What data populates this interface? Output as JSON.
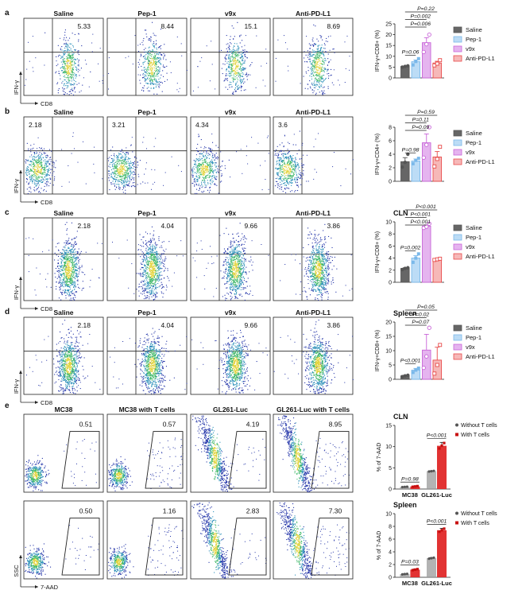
{
  "colors": {
    "saline": "#555555",
    "pep1": "#7ab8ea",
    "v9x": "#c865d8",
    "antipdl1": "#e84a4a",
    "without_t": "#999999",
    "with_t": "#e02828"
  },
  "groups": [
    "Saline",
    "Pep-1",
    "v9x",
    "Anti-PD-L1"
  ],
  "rows": [
    {
      "letter": "a",
      "y_axis_label": "IFN-γ",
      "x_axis_label": "CD8",
      "quadrant_values": [
        "5.33",
        "8.44",
        "15.1",
        "8.69"
      ],
      "value_position": "top-right"
    },
    {
      "letter": "b",
      "y_axis_label": "IFN-γ",
      "x_axis_label": "CD8",
      "quadrant_values": [
        "2.18",
        "3.21",
        "4.34",
        "3.6"
      ],
      "value_position": "top-left"
    },
    {
      "letter": "c",
      "y_axis_label": "IFN-γ",
      "x_axis_label": "CD8",
      "quadrant_values": [
        "2.18",
        "4.04",
        "9.66",
        "3.86"
      ],
      "value_position": "top-right"
    },
    {
      "letter": "d",
      "y_axis_label": "IFN-γ",
      "x_axis_label": "CD8",
      "quadrant_values": [
        "2.18",
        "4.04",
        "9.66",
        "3.86"
      ],
      "value_position": "top-right"
    }
  ],
  "row_e": {
    "letter": "e",
    "titles": [
      "MC38",
      "MC38 with T cells",
      "GL261-Luc",
      "GL261-Luc with T cells"
    ],
    "top_values": [
      "0.51",
      "0.57",
      "4.19",
      "8.95"
    ],
    "bottom_values": [
      "0.50",
      "1.16",
      "2.83",
      "7.30"
    ],
    "y_axis_label": "SSC",
    "x_axis_label": "7-AAD"
  },
  "chart_data": [
    {
      "type": "bar",
      "panel": "a",
      "title": "",
      "ylabel": "IFN-γ+CD8+ (%)",
      "categories": [
        "Saline",
        "Pep-1",
        "v9x",
        "Anti-PD-L1"
      ],
      "values": [
        5.3,
        7.5,
        16.3,
        6.9
      ],
      "points": [
        [
          5.0,
          5.3,
          5.6
        ],
        [
          6.0,
          7.6,
          8.9
        ],
        [
          12.0,
          15.6,
          20.0
        ],
        [
          5.8,
          6.6,
          8.2
        ]
      ],
      "errors": [
        0.2,
        0.8,
        2.3,
        0.8
      ],
      "ylim": [
        0,
        25
      ],
      "yticks": [
        "0",
        "5",
        "10",
        "15",
        "20",
        "25"
      ],
      "pvalues": [
        {
          "label": "P=0.06",
          "from": 0,
          "to": 1
        },
        {
          "label": "P=0.006",
          "from": 0,
          "to": 2
        },
        {
          "label": "P=0.002",
          "from": 0,
          "to": 2
        },
        {
          "label": "P=0.22",
          "from": 0,
          "to": 3
        }
      ],
      "legend": [
        "Saline",
        "Pep-1",
        "v9x",
        "Anti-PD-L1"
      ]
    },
    {
      "type": "bar",
      "panel": "b",
      "title": "",
      "ylabel": "IFN-γ+CD4+ (%)",
      "categories": [
        "Saline",
        "Pep-1",
        "v9x",
        "Anti-PD-L1"
      ],
      "values": [
        2.9,
        3.0,
        5.7,
        3.6
      ],
      "points": [
        [
          2.1,
          2.8,
          4.0
        ],
        [
          2.6,
          3.1,
          3.4
        ],
        [
          3.5,
          5.4,
          8.0
        ],
        [
          2.2,
          3.3,
          5.1
        ]
      ],
      "errors": [
        0.6,
        0.3,
        1.3,
        0.8
      ],
      "ylim": [
        0,
        8
      ],
      "yticks": [
        "0",
        "2",
        "4",
        "6",
        "8"
      ],
      "pvalues": [
        {
          "label": "P=0.98",
          "from": 0,
          "to": 1
        },
        {
          "label": "P=0.09",
          "from": 0,
          "to": 2
        },
        {
          "label": "P=0.11",
          "from": 0,
          "to": 2
        },
        {
          "label": "P=0.59",
          "from": 0,
          "to": 3
        }
      ],
      "legend": [
        "Saline",
        "Pep-1",
        "v9x",
        "Anti-PD-L1"
      ]
    },
    {
      "type": "bar",
      "panel": "c",
      "title": "CLN",
      "ylabel": "IFN-γ+CD8+ (%)",
      "categories": [
        "Saline",
        "Pep-1",
        "v9x",
        "Anti-PD-L1"
      ],
      "values": [
        2.3,
        4.0,
        9.3,
        3.8
      ],
      "points": [
        [
          2.1,
          2.3,
          2.4
        ],
        [
          3.3,
          4.0,
          4.7
        ],
        [
          9.0,
          9.2,
          9.7
        ],
        [
          3.7,
          3.8,
          3.9
        ]
      ],
      "errors": [
        0.1,
        0.4,
        0.2,
        0.1
      ],
      "ylim": [
        0,
        10
      ],
      "yticks": [
        "0",
        "2",
        "4",
        "6",
        "8",
        "10"
      ],
      "pvalues": [
        {
          "label": "P=0.002",
          "from": 0,
          "to": 1
        },
        {
          "label": "P<0.001",
          "from": 0,
          "to": 2
        },
        {
          "label": "P<0.001",
          "from": 0,
          "to": 2
        },
        {
          "label": "P<0.001",
          "from": 0,
          "to": 3
        }
      ],
      "legend": [
        "Saline",
        "Pep-1",
        "v9x",
        "Anti-PD-L1"
      ]
    },
    {
      "type": "bar",
      "panel": "d",
      "title": "Spleen",
      "ylabel": "IFN-γ+CD8+ (%)",
      "categories": [
        "Saline",
        "Pep-1",
        "v9x",
        "Anti-PD-L1"
      ],
      "values": [
        1.2,
        3.2,
        10.2,
        6.7
      ],
      "points": [
        [
          0.9,
          1.2,
          1.4
        ],
        [
          2.4,
          3.2,
          3.9
        ],
        [
          4.0,
          8.0,
          18.0
        ],
        [
          2.0,
          5.0,
          12.0
        ]
      ],
      "errors": [
        0.2,
        0.6,
        5.5,
        4.5
      ],
      "ylim": [
        0,
        20
      ],
      "yticks": [
        "0",
        "5",
        "10",
        "15",
        "20"
      ],
      "pvalues": [
        {
          "label": "P<0.001",
          "from": 0,
          "to": 1
        },
        {
          "label": "P=0.07",
          "from": 0,
          "to": 2
        },
        {
          "label": "P=0.02",
          "from": 0,
          "to": 2
        },
        {
          "label": "P=0.05",
          "from": 0,
          "to": 3
        }
      ],
      "legend": [
        "Saline",
        "Pep-1",
        "v9x",
        "Anti-PD-L1"
      ]
    },
    {
      "type": "bar",
      "panel": "e-top",
      "title": "CLN",
      "ylabel": "% of 7-AAD",
      "categories": [
        "MC38",
        "GL261-Luc"
      ],
      "series": [
        {
          "name": "Without T cells",
          "values": [
            0.5,
            4.2
          ]
        },
        {
          "name": "With T cells",
          "values": [
            0.6,
            10.2
          ]
        }
      ],
      "errors": [
        [
          0.05,
          0.1
        ],
        [
          0.1,
          0.8
        ]
      ],
      "ylim": [
        0,
        15
      ],
      "yticks": [
        "0",
        "5",
        "10",
        "15"
      ],
      "pvalues": [
        {
          "label": "P=0.98",
          "category": 0
        },
        {
          "label": "P<0.001",
          "category": 1
        }
      ]
    },
    {
      "type": "bar",
      "panel": "e-bottom",
      "title": "Spleen",
      "ylabel": "% of 7-AAD",
      "categories": [
        "MC38",
        "GL261-Luc"
      ],
      "series": [
        {
          "name": "Without T cells",
          "values": [
            0.5,
            3.0
          ]
        },
        {
          "name": "With T cells",
          "values": [
            1.2,
            7.4
          ]
        }
      ],
      "errors": [
        [
          0.05,
          0.1
        ],
        [
          0.1,
          0.3
        ]
      ],
      "ylim": [
        0,
        10
      ],
      "yticks": [
        "0",
        "2",
        "4",
        "6",
        "8",
        "10"
      ],
      "pvalues": [
        {
          "label": "P=0.03",
          "category": 0
        },
        {
          "label": "P<0.001",
          "category": 1
        }
      ]
    }
  ]
}
